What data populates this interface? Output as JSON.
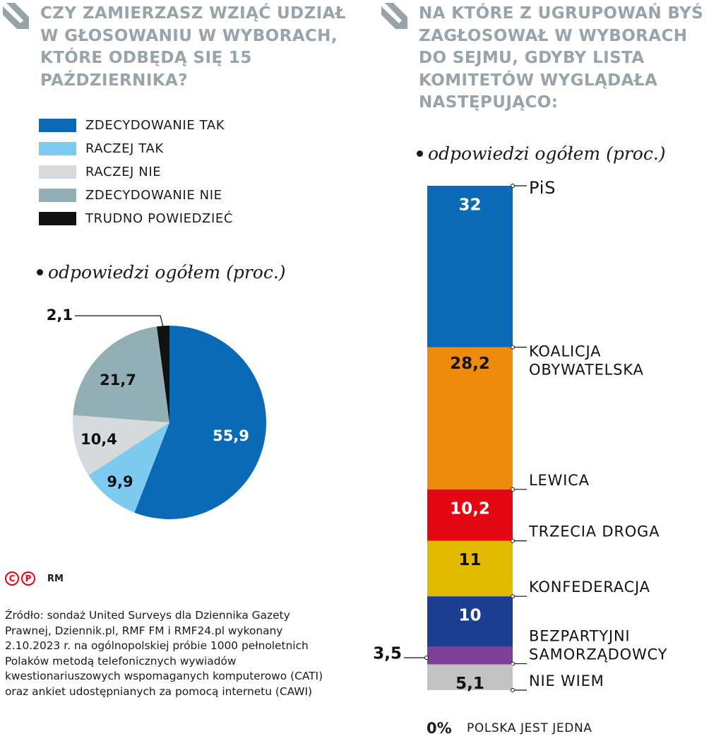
{
  "left": {
    "question": "CZY ZAMIERZASZ WZIĄĆ UDZIAŁ W GŁOSOWANIU W WYBORACH, KTÓRE ODBĘDĄ SIĘ 15 PAŹDZIERNIKA?",
    "subtitle": "odpowiedzi ogółem (proc.)"
  },
  "right": {
    "question": "NA KTÓRE Z UGRUPOWAŃ BYŚ ZAGŁOSOWAŁ W WYBORACH DO SEJMU, GDYBY LISTA KOMITETÓW WYGLĄDAŁA NASTĘPUJĄCO:",
    "subtitle": "odpowiedzi ogółem (proc.)",
    "zero_label": "0%",
    "footnote": "POLSKA JEST JEDNA"
  },
  "credit": {
    "copyright_symbol": "C",
    "publicity_symbol": "P",
    "author": "RM"
  },
  "source": "Źródło: sondaż United Surveys dla Dziennika Gazety Prawnej, Dziennik.pl, RMF FM i RMF24.pl wykonany 2.10.2023 r. na ogólnopolskiej próbie 1000 pełnoletnich Polaków metodą telefonicznych wywiadów kwestionariuszowych wspomaganych komputerowo (CATI) oraz ankiet udostępnianych za pomocą internetu (CAWI)",
  "arrow_color": "#98a3aa",
  "chart_data": [
    {
      "type": "pie",
      "title": "CZY ZAMIERZASZ WZIĄĆ UDZIAŁ W GŁOSOWANIU W WYBORACH, KTÓRE ODBĘDĄ SIĘ 15 PAŹDZIERNIKA?",
      "subtitle": "odpowiedzi ogółem (proc.)",
      "legend_position": "top-left",
      "slices": [
        {
          "name": "ZDECYDOWANIE TAK",
          "value": 55.9,
          "label": "55,9",
          "color": "#0a6ab8"
        },
        {
          "name": "RACZEJ TAK",
          "value": 9.9,
          "label": "9,9",
          "color": "#7ecbf2"
        },
        {
          "name": "RACZEJ NIE",
          "value": 10.4,
          "label": "10,4",
          "color": "#d6dadd"
        },
        {
          "name": "ZDECYDOWANIE NIE",
          "value": 21.7,
          "label": "21,7",
          "color": "#93afb6"
        },
        {
          "name": "TRUDNO POWIEDZIEĆ",
          "value": 2.1,
          "label": "2,1",
          "color": "#111111"
        }
      ]
    },
    {
      "type": "bar",
      "orientation": "stacked-vertical",
      "title": "NA KTÓRE Z UGRUPOWAŃ BYŚ ZAGŁOSOWAŁ W WYBORACH DO SEJMU, GDYBY LISTA KOMITETÓW WYGLĄDAŁA NASTĘPUJĄCO:",
      "subtitle": "odpowiedzi ogółem (proc.)",
      "segments": [
        {
          "name": "PiS",
          "value": 32,
          "label": "32",
          "color": "#0a6ab8",
          "text_color": "#ffffff"
        },
        {
          "name": "KOALICJA OBYWATELSKA",
          "value": 28.2,
          "label": "28,2",
          "color": "#ee8b0a",
          "text_color": "#111111"
        },
        {
          "name": "LEWICA",
          "value": 10.2,
          "label": "10,2",
          "color": "#e30613",
          "text_color": "#ffffff"
        },
        {
          "name": "TRZECIA DROGA",
          "value": 11,
          "label": "11",
          "color": "#e1b900",
          "text_color": "#111111"
        },
        {
          "name": "KONFEDERACJA",
          "value": 10,
          "label": "10",
          "color": "#1c3f94",
          "text_color": "#ffffff"
        },
        {
          "name": "BEZPARTYJNI SAMORZĄDOWCY",
          "value": 3.5,
          "label": "3,5",
          "color": "#7e3f98",
          "text_color": "#111111"
        },
        {
          "name": "NIE WIEM",
          "value": 5.1,
          "label": "5,1",
          "color": "#c3c3c3",
          "text_color": "#111111"
        }
      ]
    }
  ]
}
